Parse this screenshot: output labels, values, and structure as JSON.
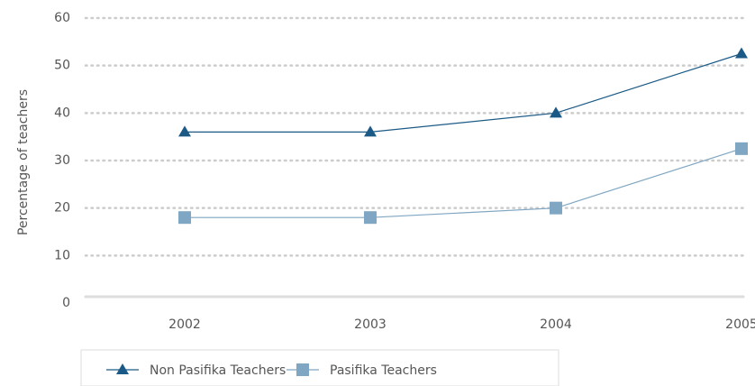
{
  "chart_data": {
    "type": "line",
    "y_label": "Percentage of teachers",
    "categories": [
      "2002",
      "2003",
      "2004",
      "2005"
    ],
    "series": [
      {
        "name": "Non Pasifika Teachers",
        "color": "#1b5a86",
        "marker": "triangle",
        "values": [
          36,
          36,
          40,
          52.5
        ]
      },
      {
        "name": "Pasifika Teachers",
        "color": "#7fa6c2",
        "marker": "square",
        "values": [
          18,
          18,
          20,
          32.5
        ]
      }
    ],
    "ylim": [
      0,
      60
    ],
    "yticks": [
      0,
      10,
      20,
      30,
      40,
      50,
      60
    ],
    "grid": true,
    "legend": "bottom"
  }
}
